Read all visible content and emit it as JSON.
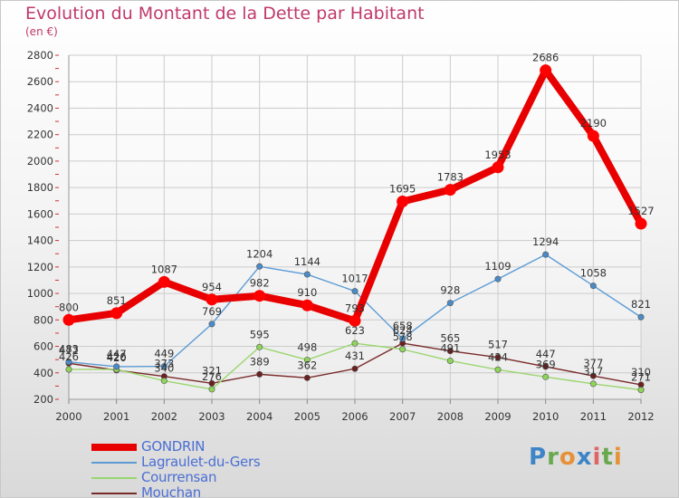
{
  "title": "Evolution du Montant de la Dette par Habitant",
  "subtitle": "(en €)",
  "logo": {
    "text": "Proxiti",
    "letters": [
      "P",
      "r",
      "o",
      "x",
      "i",
      "t",
      "i"
    ],
    "colors": [
      "#3d85c6",
      "#6aa84f",
      "#e69138",
      "#3d85c6",
      "#e06666",
      "#6aa84f",
      "#e69138"
    ]
  },
  "chart_data": {
    "type": "line",
    "title": "Evolution du Montant de la Dette par Habitant",
    "subtitle": "(en €)",
    "xlabel": "",
    "ylabel": "",
    "x": [
      "2000",
      "2001",
      "2002",
      "2003",
      "2004",
      "2005",
      "2006",
      "2007",
      "2008",
      "2009",
      "2010",
      "2011",
      "2012"
    ],
    "ylim": [
      200,
      2800
    ],
    "yticks": [
      "200",
      "400",
      "600",
      "800",
      "1000",
      "1200",
      "1400",
      "1600",
      "1800",
      "2000",
      "2200",
      "2400",
      "2600",
      "2800"
    ],
    "grid": true,
    "legend_position": "bottom-left",
    "series": [
      {
        "name": "GONDRIN",
        "color": "#e80000",
        "marker_color": "#ff0000",
        "values": [
          800,
          851,
          1087,
          954,
          982,
          910,
          793,
          1695,
          1783,
          1953,
          2686,
          2190,
          1527
        ],
        "labels": [
          "800",
          "851",
          "1087",
          "954",
          "982",
          "910",
          "793",
          "1695",
          "1783",
          "1953",
          "2686",
          "2190",
          "1527"
        ]
      },
      {
        "name": "Lagraulet-du-Gers",
        "color": "#5b9bd5",
        "marker_color": "#4a8bc8",
        "values": [
          483,
          447,
          449,
          769,
          1204,
          1144,
          1017,
          658,
          928,
          1109,
          1294,
          1058,
          821
        ],
        "labels": [
          "483",
          "447",
          "449",
          "769",
          "1204",
          "1144",
          "1017",
          "658",
          "928",
          "1109",
          "1294",
          "1058",
          "821"
        ]
      },
      {
        "name": "Courrensan",
        "color": "#9ad66e",
        "marker_color": "#8fd45a",
        "values": [
          426,
          426,
          340,
          276,
          595,
          498,
          623,
          578,
          491,
          424,
          369,
          317,
          271
        ],
        "labels": [
          "426",
          "426",
          "340",
          "276",
          "595",
          "498",
          "623",
          "578",
          "491",
          "424",
          "369",
          "317",
          "271"
        ]
      },
      {
        "name": "Mouchan",
        "color": "#7a2a2a",
        "marker_color": "#6b1f1f",
        "values": [
          472,
          420,
          373,
          321,
          389,
          362,
          431,
          624,
          565,
          517,
          447,
          377,
          310
        ],
        "labels": [
          "472",
          "420",
          "373",
          "321",
          "389",
          "362",
          "431",
          "624",
          "565",
          "517",
          "447",
          "377",
          "310"
        ]
      }
    ]
  }
}
